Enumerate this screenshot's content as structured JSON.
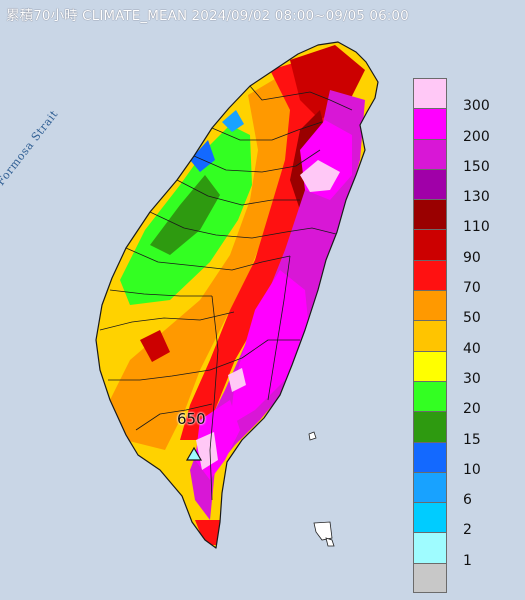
{
  "title": "累積70小時 CLIMATE_MEAN 2024/09/02 08:00~09/05 06:00",
  "strait_label": "Formosa Strait",
  "max_label": "650",
  "legend": [
    {
      "label": "300",
      "color": "#ffc8f6"
    },
    {
      "label": "200",
      "color": "#ff00ff"
    },
    {
      "label": "150",
      "color": "#d817d6"
    },
    {
      "label": "130",
      "color": "#a000a8"
    },
    {
      "label": "110",
      "color": "#9a0000"
    },
    {
      "label": "90",
      "color": "#cc0000"
    },
    {
      "label": "70",
      "color": "#ff1111"
    },
    {
      "label": "50",
      "color": "#ff9900"
    },
    {
      "label": "40",
      "color": "#ffc400"
    },
    {
      "label": "30",
      "color": "#ffff00"
    },
    {
      "label": "20",
      "color": "#33ff22"
    },
    {
      "label": "15",
      "color": "#2e9a10"
    },
    {
      "label": "10",
      "color": "#1369ff"
    },
    {
      "label": "6",
      "color": "#18a2ff"
    },
    {
      "label": "2",
      "color": "#00ccff"
    },
    {
      "label": "1",
      "color": "#9ffcff"
    },
    {
      "label": "",
      "color": "#c8c8c8"
    }
  ]
}
